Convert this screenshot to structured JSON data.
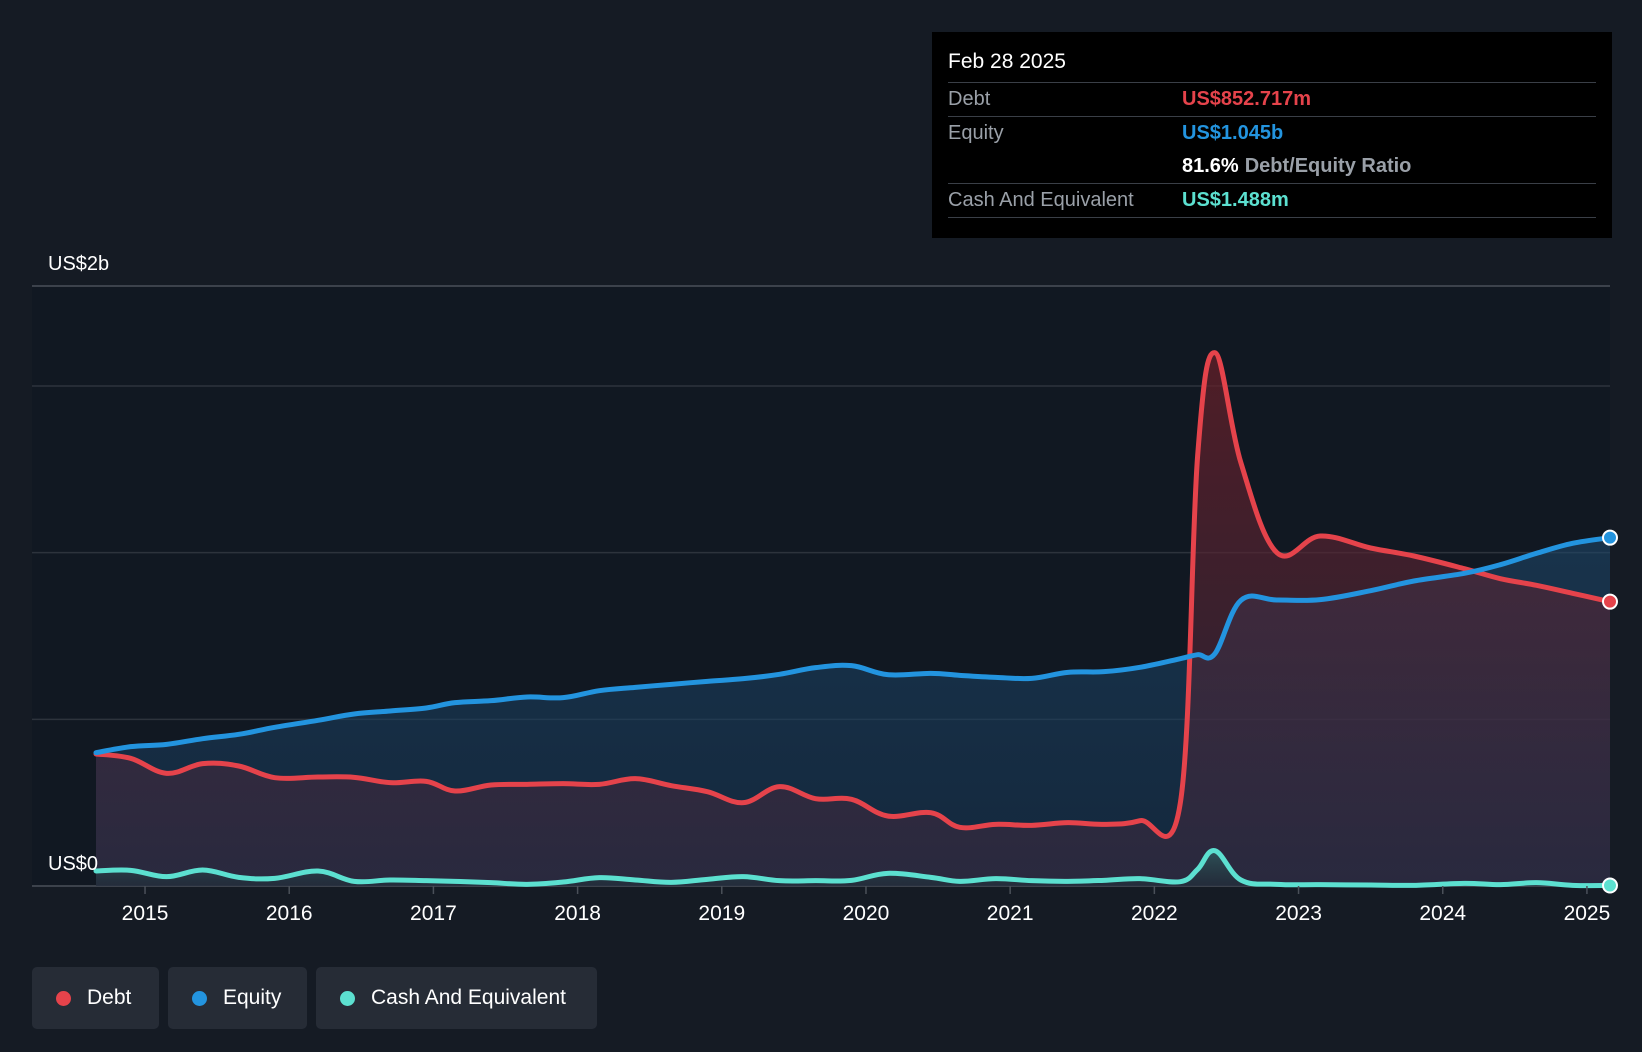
{
  "chart_data": {
    "type": "area",
    "x_unit": "year",
    "xlim": [
      2014.66,
      2025.16
    ],
    "ylim": [
      0,
      1.8
    ],
    "y_unit": "US$ billions",
    "y_labels": {
      "top": "US$2b",
      "bottom": "US$0"
    },
    "x_ticks": [
      "2015",
      "2016",
      "2017",
      "2018",
      "2019",
      "2020",
      "2021",
      "2022",
      "2023",
      "2024",
      "2025"
    ],
    "grid": true,
    "legend_position": "bottom-left",
    "series": [
      {
        "name": "Debt",
        "color": "#e5434b",
        "points": [
          [
            2014.66,
            0.396
          ],
          [
            2014.9,
            0.383
          ],
          [
            2015.15,
            0.338
          ],
          [
            2015.4,
            0.367
          ],
          [
            2015.65,
            0.36
          ],
          [
            2015.9,
            0.325
          ],
          [
            2016.2,
            0.327
          ],
          [
            2016.45,
            0.326
          ],
          [
            2016.7,
            0.31
          ],
          [
            2016.95,
            0.314
          ],
          [
            2017.15,
            0.285
          ],
          [
            2017.4,
            0.303
          ],
          [
            2017.65,
            0.305
          ],
          [
            2017.9,
            0.307
          ],
          [
            2018.15,
            0.305
          ],
          [
            2018.4,
            0.322
          ],
          [
            2018.65,
            0.301
          ],
          [
            2018.9,
            0.283
          ],
          [
            2019.15,
            0.25
          ],
          [
            2019.4,
            0.298
          ],
          [
            2019.65,
            0.262
          ],
          [
            2019.9,
            0.26
          ],
          [
            2020.15,
            0.21
          ],
          [
            2020.45,
            0.22
          ],
          [
            2020.65,
            0.176
          ],
          [
            2020.9,
            0.185
          ],
          [
            2021.15,
            0.182
          ],
          [
            2021.4,
            0.19
          ],
          [
            2021.65,
            0.185
          ],
          [
            2021.9,
            0.196
          ],
          [
            2022.18,
            0.249
          ],
          [
            2022.3,
            1.29
          ],
          [
            2022.42,
            1.6
          ],
          [
            2022.6,
            1.27
          ],
          [
            2022.85,
            1.0
          ],
          [
            2023.15,
            1.05
          ],
          [
            2023.5,
            1.014
          ],
          [
            2023.8,
            0.99
          ],
          [
            2024.15,
            0.952
          ],
          [
            2024.4,
            0.922
          ],
          [
            2024.65,
            0.902
          ],
          [
            2024.9,
            0.878
          ],
          [
            2025.16,
            0.853
          ]
        ]
      },
      {
        "name": "Equity",
        "color": "#2394df",
        "points": [
          [
            2014.66,
            0.4
          ],
          [
            2014.9,
            0.418
          ],
          [
            2015.15,
            0.425
          ],
          [
            2015.4,
            0.442
          ],
          [
            2015.65,
            0.455
          ],
          [
            2015.9,
            0.476
          ],
          [
            2016.2,
            0.497
          ],
          [
            2016.45,
            0.516
          ],
          [
            2016.7,
            0.525
          ],
          [
            2016.95,
            0.534
          ],
          [
            2017.15,
            0.55
          ],
          [
            2017.4,
            0.556
          ],
          [
            2017.65,
            0.567
          ],
          [
            2017.9,
            0.565
          ],
          [
            2018.15,
            0.586
          ],
          [
            2018.4,
            0.596
          ],
          [
            2018.65,
            0.605
          ],
          [
            2018.9,
            0.614
          ],
          [
            2019.15,
            0.622
          ],
          [
            2019.4,
            0.635
          ],
          [
            2019.65,
            0.655
          ],
          [
            2019.9,
            0.661
          ],
          [
            2020.15,
            0.634
          ],
          [
            2020.45,
            0.638
          ],
          [
            2020.65,
            0.632
          ],
          [
            2020.9,
            0.626
          ],
          [
            2021.15,
            0.623
          ],
          [
            2021.4,
            0.641
          ],
          [
            2021.65,
            0.643
          ],
          [
            2021.9,
            0.656
          ],
          [
            2022.18,
            0.682
          ],
          [
            2022.3,
            0.694
          ],
          [
            2022.42,
            0.697
          ],
          [
            2022.6,
            0.857
          ],
          [
            2022.85,
            0.858
          ],
          [
            2023.15,
            0.859
          ],
          [
            2023.5,
            0.886
          ],
          [
            2023.8,
            0.915
          ],
          [
            2024.15,
            0.938
          ],
          [
            2024.4,
            0.964
          ],
          [
            2024.65,
            0.998
          ],
          [
            2024.9,
            1.028
          ],
          [
            2025.16,
            1.045
          ]
        ]
      },
      {
        "name": "Cash And Equivalent",
        "color": "#5ce0d0",
        "points": [
          [
            2014.66,
            0.045
          ],
          [
            2014.9,
            0.047
          ],
          [
            2015.15,
            0.028
          ],
          [
            2015.4,
            0.048
          ],
          [
            2015.65,
            0.026
          ],
          [
            2015.9,
            0.023
          ],
          [
            2016.2,
            0.045
          ],
          [
            2016.45,
            0.014
          ],
          [
            2016.7,
            0.018
          ],
          [
            2016.95,
            0.016
          ],
          [
            2017.15,
            0.014
          ],
          [
            2017.4,
            0.01
          ],
          [
            2017.65,
            0.005
          ],
          [
            2017.9,
            0.012
          ],
          [
            2018.15,
            0.025
          ],
          [
            2018.4,
            0.018
          ],
          [
            2018.65,
            0.011
          ],
          [
            2018.9,
            0.02
          ],
          [
            2019.15,
            0.028
          ],
          [
            2019.4,
            0.016
          ],
          [
            2019.65,
            0.016
          ],
          [
            2019.9,
            0.017
          ],
          [
            2020.15,
            0.038
          ],
          [
            2020.45,
            0.026
          ],
          [
            2020.65,
            0.014
          ],
          [
            2020.9,
            0.022
          ],
          [
            2021.15,
            0.016
          ],
          [
            2021.4,
            0.014
          ],
          [
            2021.65,
            0.017
          ],
          [
            2021.9,
            0.022
          ],
          [
            2022.18,
            0.013
          ],
          [
            2022.3,
            0.05
          ],
          [
            2022.42,
            0.106
          ],
          [
            2022.6,
            0.018
          ],
          [
            2022.85,
            0.005
          ],
          [
            2023.15,
            0.004
          ],
          [
            2023.5,
            0.003
          ],
          [
            2023.8,
            0.002
          ],
          [
            2024.15,
            0.008
          ],
          [
            2024.4,
            0.004
          ],
          [
            2024.65,
            0.01
          ],
          [
            2024.9,
            0.002
          ],
          [
            2025.16,
            0.0015
          ]
        ]
      }
    ]
  },
  "tooltip": {
    "date": "Feb 28 2025",
    "rows": [
      {
        "label": "Debt",
        "value": "US$852.717m",
        "color": "#e5434b"
      },
      {
        "label": "Equity",
        "value": "US$1.045b",
        "color": "#2394df"
      }
    ],
    "ratio": {
      "value": "81.6%",
      "label": "Debt/Equity Ratio"
    },
    "cash": {
      "label": "Cash And Equivalent",
      "value": "US$1.488m",
      "color": "#5ce0d0"
    }
  },
  "legend": [
    {
      "label": "Debt",
      "color": "#e5434b"
    },
    {
      "label": "Equity",
      "color": "#2394df"
    },
    {
      "label": "Cash And Equivalent",
      "color": "#5ce0d0"
    }
  ]
}
